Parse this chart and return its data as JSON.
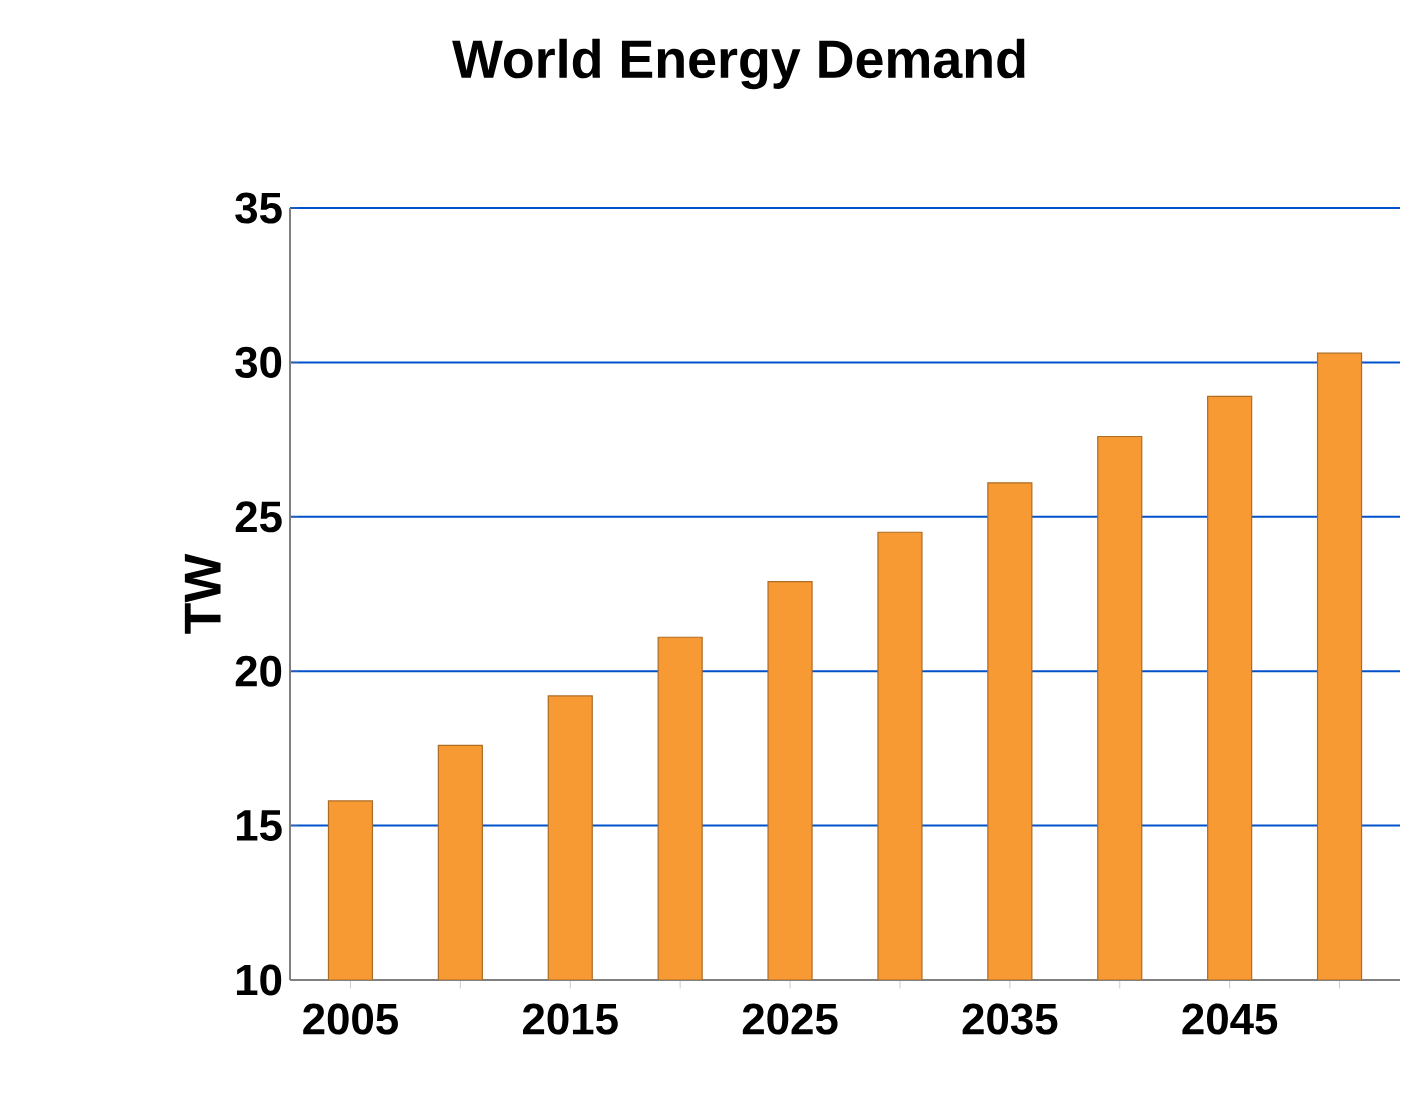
{
  "chart_data": {
    "type": "bar",
    "title": "World Energy Demand",
    "ylabel": "TW",
    "categories": [
      "2005",
      null,
      "2015",
      null,
      "2025",
      null,
      "2035",
      null,
      "2045",
      null
    ],
    "values": [
      15.8,
      17.6,
      19.2,
      21.1,
      22.9,
      24.5,
      26.1,
      27.6,
      28.9,
      30.3
    ],
    "color": "#f79a34",
    "ylim": [
      10,
      35
    ],
    "yticks": [
      10,
      15,
      20,
      25,
      30,
      35
    ],
    "grid": "y"
  }
}
